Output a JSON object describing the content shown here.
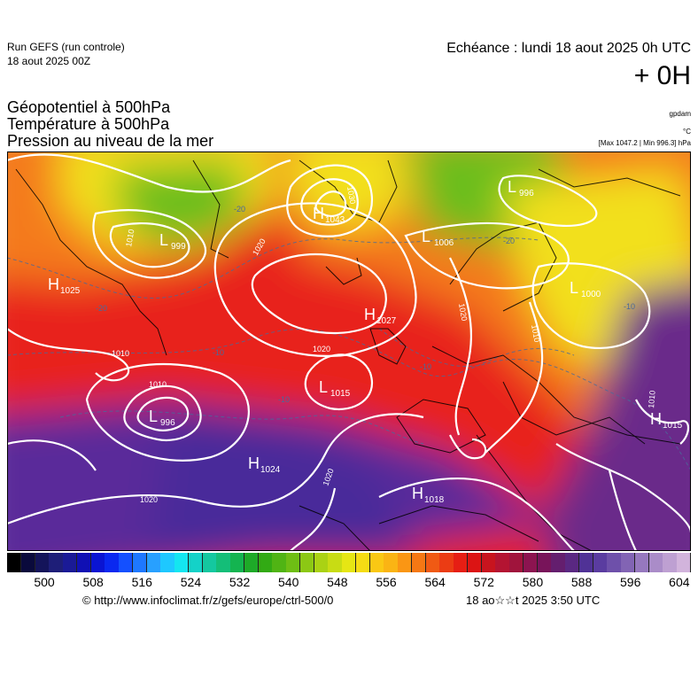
{
  "header": {
    "run_title": "Run GEFS (run controle)",
    "run_date": "18 aout 2025 00Z",
    "echeance": "Echéance : lundi 18 aout 2025 0h UTC",
    "offset": "+ 0H"
  },
  "layers": {
    "line1": "Géopotentiel à 500hPa",
    "line2": "Température à 500hPa",
    "line3": "Pression au niveau de la mer",
    "unit1": "gpdam",
    "unit2": "°C",
    "unit3": "[Max 1047.2 | Min 996.3] hPa"
  },
  "pressure_centers": [
    {
      "type": "H",
      "value": "1025"
    },
    {
      "type": "L",
      "value": "999"
    },
    {
      "type": "H",
      "value": "1043"
    },
    {
      "type": "L",
      "value": "1006"
    },
    {
      "type": "L",
      "value": "996"
    },
    {
      "type": "L",
      "value": "1000"
    },
    {
      "type": "H",
      "value": "1027"
    },
    {
      "type": "L",
      "value": "1015"
    },
    {
      "type": "L",
      "value": "996"
    },
    {
      "type": "H",
      "value": "1024"
    },
    {
      "type": "H",
      "value": "1018"
    },
    {
      "type": "H",
      "value": "1015"
    }
  ],
  "isobar_labels": [
    "1010",
    "1020",
    "1030",
    "1010",
    "1020",
    "1010",
    "1020",
    "1020",
    "1010",
    "1020",
    "1010"
  ],
  "temp_labels": [
    "-20",
    "-20",
    "-20",
    "-10",
    "-10",
    "-10",
    "-10"
  ],
  "colors": {
    "purple": "#5a2a9a",
    "red": "#e8201c",
    "orange": "#f47a1a",
    "yellow": "#f2e01a",
    "green": "#6cbe1a"
  },
  "scale": {
    "ticks": [
      "500",
      "508",
      "516",
      "524",
      "532",
      "540",
      "548",
      "556",
      "564",
      "572",
      "580",
      "588",
      "596",
      "604"
    ],
    "colors": [
      "#000000",
      "#0a0a3c",
      "#14145a",
      "#1e1e78",
      "#1a1a96",
      "#1010b4",
      "#0a14d2",
      "#0a28f0",
      "#1450ff",
      "#1e78ff",
      "#28a0ff",
      "#1ec8ff",
      "#14e6f0",
      "#14d2c8",
      "#14c8a0",
      "#14be78",
      "#14b450",
      "#1eaa28",
      "#32aa14",
      "#50b414",
      "#6ebe14",
      "#8cc814",
      "#aad214",
      "#c8dc14",
      "#e6e614",
      "#f5dc14",
      "#fac814",
      "#fab414",
      "#fa9614",
      "#f57814",
      "#f05a14",
      "#eb3c14",
      "#e61e14",
      "#dc1414",
      "#c8141e",
      "#b41432",
      "#a0143c",
      "#8c1450",
      "#78145a",
      "#641e6e",
      "#5a2882",
      "#503296",
      "#5a3ca0",
      "#6e50aa",
      "#8264b4",
      "#9678be",
      "#aa8cc8",
      "#bea0d2",
      "#d2b4dc"
    ]
  },
  "footer": {
    "credit": "© http://www.infoclimat.fr/z/gefs/europe/ctrl-500/0",
    "generated": "18 ao☆☆t 2025  3:50 UTC"
  }
}
